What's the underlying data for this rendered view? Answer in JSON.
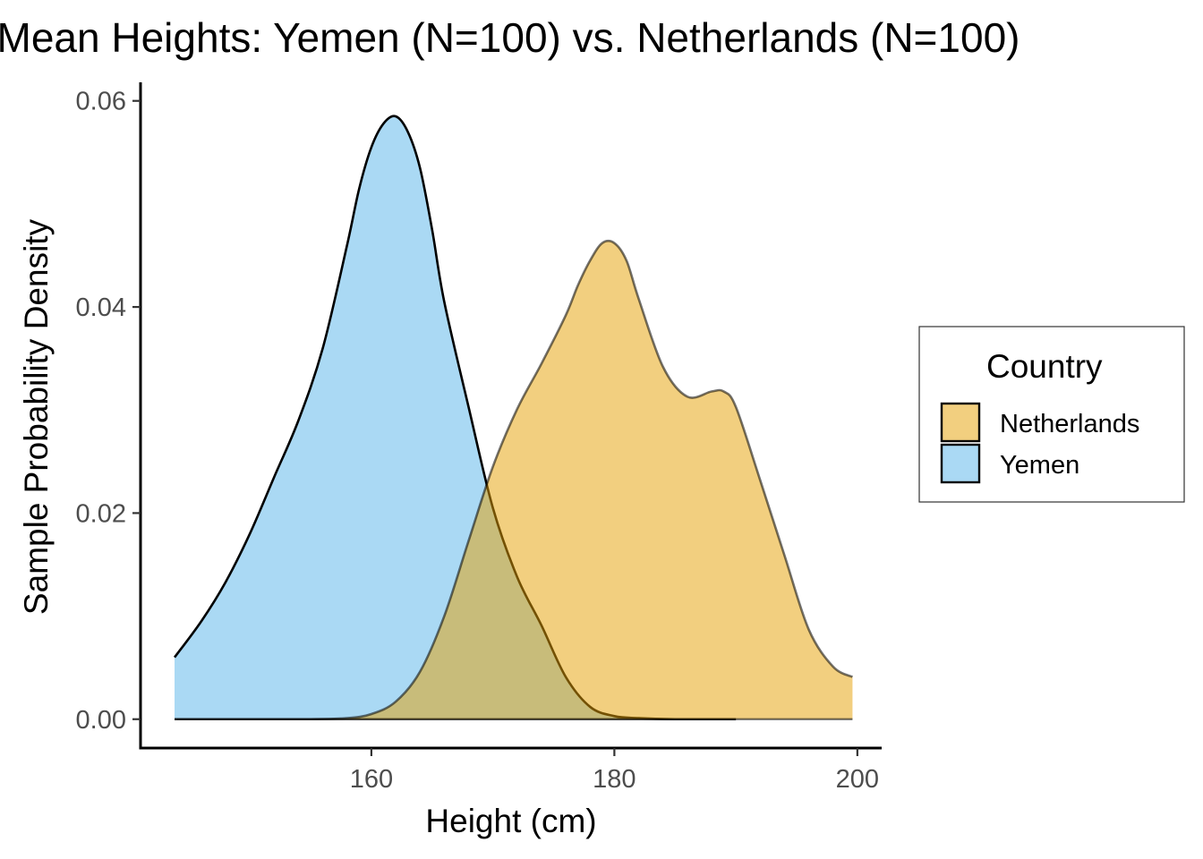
{
  "chart_data": {
    "type": "area",
    "title": "Mean Heights: Yemen (N=100) vs. Netherlands (N=100)",
    "xlabel": "Height (cm)",
    "ylabel": "Sample Probability Density",
    "xlim": [
      141,
      202
    ],
    "ylim": [
      -0.0028,
      0.0618
    ],
    "xticks": [
      160,
      180,
      200
    ],
    "xtick_labels": [
      "160",
      "180",
      "200"
    ],
    "yticks": [
      0,
      0.02,
      0.04,
      0.06
    ],
    "ytick_labels": [
      "0.00",
      "0.02",
      "0.04",
      "0.06"
    ],
    "grid": false,
    "legend": {
      "title": "Country",
      "position": "right",
      "entries": [
        "Netherlands",
        "Yemen"
      ]
    },
    "colors": {
      "Netherlands": "#E69F00",
      "Yemen": "#56B4E9"
    },
    "series": [
      {
        "name": "Yemen",
        "x": [
          143.8,
          146,
          148,
          150,
          152,
          154,
          156,
          158,
          159,
          160,
          161,
          162,
          163,
          164,
          165,
          166,
          168,
          170,
          172,
          174,
          176,
          178,
          180,
          182,
          185,
          190
        ],
        "y": [
          0.006,
          0.0095,
          0.0133,
          0.018,
          0.0235,
          0.029,
          0.036,
          0.046,
          0.0515,
          0.0555,
          0.0578,
          0.0585,
          0.057,
          0.0535,
          0.0475,
          0.0405,
          0.0303,
          0.0205,
          0.0138,
          0.0091,
          0.0041,
          0.0012,
          0.0003,
          0.0001,
          0.0,
          0.0
        ]
      },
      {
        "name": "Netherlands",
        "x": [
          143.8,
          150,
          155,
          158,
          160,
          162,
          164,
          166,
          168,
          170,
          172,
          174,
          176,
          177,
          178,
          179,
          180,
          181,
          182,
          184,
          186,
          188,
          189,
          190,
          192,
          194,
          196,
          198,
          199.6
        ],
        "y": [
          0.0,
          0.0,
          0.0,
          0.0001,
          0.0005,
          0.0017,
          0.0046,
          0.01,
          0.0173,
          0.0245,
          0.0301,
          0.0345,
          0.0392,
          0.0421,
          0.0445,
          0.0462,
          0.0462,
          0.0445,
          0.0408,
          0.0342,
          0.0313,
          0.0318,
          0.0318,
          0.0303,
          0.0232,
          0.0159,
          0.0087,
          0.0051,
          0.0041
        ]
      }
    ]
  }
}
